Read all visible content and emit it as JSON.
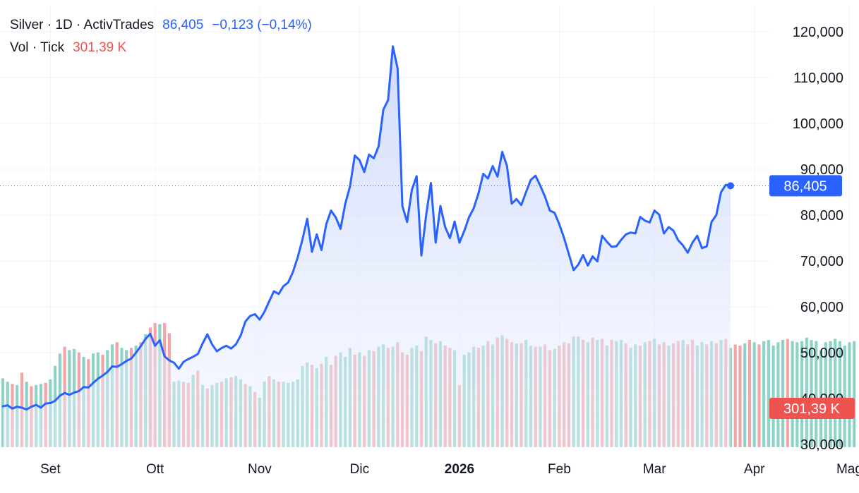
{
  "legend": {
    "symbol": "Silver",
    "interval": "1D",
    "source": "ActivTrades",
    "separator": "·",
    "last": "86,405",
    "change": "−0,123",
    "change_pct": "(−0,14%)",
    "vol_label": "Vol",
    "vol_type": "Tick",
    "vol_value": "301,39 K"
  },
  "price_badge": "86,405",
  "volume_badge": "301,39 K",
  "colors": {
    "line": "#2962ff",
    "fill_top": "#c7d4fb",
    "fill_bottom": "#eef2fd",
    "vol_up": "#8fd3c7",
    "vol_down": "#f4a4a6",
    "badge_blue": "#2962ff",
    "badge_red": "#ef5350",
    "grid": "#f0f3fa",
    "text": "#131722"
  },
  "chart_data": {
    "type": "area",
    "title": "Silver · 1D · ActivTrades",
    "y_axis": {
      "ticks": [
        "120,000",
        "110,000",
        "100,000",
        "90,000",
        "80,000",
        "70,000",
        "60,000",
        "50,000",
        "40,000",
        "30,000"
      ],
      "tick_values": [
        120,
        110,
        100,
        90,
        80,
        70,
        60,
        50,
        40,
        30
      ],
      "range": [
        29,
        122
      ]
    },
    "x_axis": {
      "labels": [
        "Set",
        "Ott",
        "Nov",
        "Dic",
        "2026",
        "Feb",
        "Mar",
        "Apr",
        "Mag"
      ],
      "label_index": [
        10,
        32,
        54,
        75,
        96,
        117,
        137,
        158,
        178
      ]
    },
    "grid": true,
    "current_price": 86.405,
    "series": [
      {
        "values": [
          38.3,
          38.5,
          37.8,
          38.2,
          38.0,
          37.6,
          38.2,
          38.6,
          38.0,
          38.9,
          39.0,
          39.5,
          40.6,
          41.2,
          40.8,
          41.3,
          41.6,
          42.5,
          42.4,
          43.4,
          44.3,
          45.0,
          45.8,
          47.0,
          46.9,
          47.5,
          48.2,
          48.7,
          50.0,
          51.4,
          53.0,
          54.1,
          51.5,
          52.7,
          49.2,
          48.3,
          47.8,
          46.5,
          48.0,
          48.6,
          49.1,
          49.7,
          52.0,
          54.0,
          51.8,
          50.3,
          51.0,
          51.5,
          50.9,
          51.8,
          53.7,
          56.8,
          58.0,
          58.4,
          57.2,
          58.9,
          61.2,
          63.4,
          62.8,
          64.5,
          65.3,
          67.6,
          70.8,
          74.7,
          79.2,
          72.0,
          75.8,
          72.4,
          78.0,
          81.0,
          79.5,
          77.0,
          82.5,
          86.3,
          93.0,
          92.0,
          89.4,
          93.2,
          92.4,
          95.0,
          103.0,
          105.1,
          116.8,
          112.0,
          82.0,
          78.5,
          85.5,
          88.5,
          71.2,
          80.0,
          87.0,
          74.0,
          82.0,
          77.4,
          75.0,
          78.6,
          74.0,
          76.5,
          79.5,
          81.5,
          84.7,
          89.0,
          88.0,
          90.7,
          88.4,
          93.8,
          90.7,
          82.5,
          83.5,
          82.2,
          85.0,
          87.7,
          88.6,
          86.4,
          84.0,
          81.0,
          80.5,
          78.0,
          75.0,
          71.5,
          68.0,
          69.2,
          71.3,
          69.0,
          71.0,
          69.9,
          75.5,
          74.2,
          73.1,
          73.2,
          74.6,
          75.8,
          76.2,
          76.0,
          79.6,
          78.8,
          78.4,
          81.0,
          80.1,
          76.0,
          77.4,
          76.6,
          74.5,
          73.4,
          71.8,
          74.0,
          75.5,
          72.8,
          73.2,
          78.5,
          80.0,
          85.0,
          86.6,
          86.405
        ]
      }
    ],
    "volume": {
      "label": "Vol · Tick",
      "last": "301,39 K",
      "values": [
        0.61,
        0.58,
        0.56,
        0.55,
        0.66,
        0.58,
        0.54,
        0.55,
        0.56,
        0.57,
        0.6,
        0.72,
        0.83,
        0.89,
        0.86,
        0.87,
        0.84,
        0.8,
        0.78,
        0.83,
        0.84,
        0.82,
        0.86,
        0.91,
        0.93,
        0.88,
        0.86,
        0.88,
        0.9,
        0.93,
        1.0,
        1.06,
        1.1,
        1.09,
        1.1,
        1.01,
        0.58,
        0.59,
        0.58,
        0.57,
        0.64,
        0.68,
        0.55,
        0.52,
        0.55,
        0.57,
        0.58,
        0.61,
        0.62,
        0.63,
        0.6,
        0.56,
        0.54,
        0.49,
        0.44,
        0.58,
        0.63,
        0.6,
        0.58,
        0.58,
        0.57,
        0.58,
        0.6,
        0.72,
        0.75,
        0.73,
        0.7,
        0.74,
        0.8,
        0.73,
        0.81,
        0.84,
        0.8,
        0.88,
        0.82,
        0.84,
        0.81,
        0.86,
        0.85,
        0.89,
        0.91,
        0.88,
        0.89,
        0.93,
        0.84,
        0.82,
        0.88,
        0.9,
        0.85,
        0.98,
        0.95,
        0.92,
        0.94,
        0.9,
        0.88,
        0.86,
        0.55,
        0.82,
        0.84,
        0.89,
        0.88,
        0.9,
        0.94,
        0.91,
        0.97,
        0.99,
        0.96,
        0.93,
        0.92,
        0.92,
        0.95,
        0.9,
        0.89,
        0.89,
        0.91,
        0.86,
        0.87,
        0.9,
        0.93,
        0.92,
        0.98,
        0.98,
        0.95,
        0.93,
        0.97,
        0.95,
        0.96,
        0.9,
        0.95,
        0.94,
        0.95,
        0.92,
        0.88,
        0.91,
        0.9,
        0.93,
        0.94,
        0.96,
        0.91,
        0.93,
        0.9,
        0.92,
        0.94,
        0.95,
        0.91,
        0.95,
        0.9,
        0.93,
        0.91,
        0.94,
        0.92,
        0.95,
        0.96,
        0.88,
        0.91,
        0.9,
        0.92,
        0.95,
        0.93,
        0.91,
        0.94,
        0.95,
        0.9,
        0.93,
        0.95,
        0.96,
        0.94,
        0.93,
        0.94,
        0.97,
        0.95,
        0.94,
        0.86,
        0.93,
        0.94,
        0.96,
        0.94,
        0.9,
        0.93,
        0.94
      ],
      "down": [
        0,
        0,
        1,
        0,
        1,
        0,
        1,
        0,
        0,
        1,
        0,
        0,
        0,
        1,
        0,
        0,
        1,
        0,
        1,
        0,
        0,
        1,
        0,
        0,
        1,
        0,
        0,
        1,
        0,
        1,
        0,
        1,
        1,
        0,
        1,
        1,
        0,
        0,
        1,
        1,
        0,
        1,
        0,
        1,
        0,
        0,
        1,
        0,
        1,
        0,
        0,
        1,
        0,
        1,
        0,
        0,
        1,
        0,
        1,
        0,
        0,
        0,
        0,
        0,
        0,
        1,
        0,
        1,
        0,
        1,
        1,
        0,
        0,
        0,
        1,
        0,
        1,
        0,
        1,
        0,
        0,
        1,
        0,
        1,
        1,
        1,
        0,
        0,
        1,
        0,
        0,
        1,
        0,
        1,
        1,
        0,
        1,
        0,
        0,
        0,
        1,
        0,
        1,
        0,
        1,
        0,
        1,
        1,
        0,
        1,
        0,
        0,
        1,
        0,
        1,
        1,
        0,
        1,
        1,
        1,
        0,
        0,
        1,
        0,
        1,
        0,
        1,
        0,
        1,
        0,
        0,
        1,
        0,
        0,
        1,
        0,
        1,
        0,
        1,
        1,
        0,
        1,
        1,
        0,
        1,
        1,
        0,
        0,
        1,
        0,
        1,
        0,
        1,
        0,
        1,
        1,
        0,
        1,
        0,
        1,
        0,
        0,
        0,
        0,
        0,
        1
      ]
    }
  }
}
